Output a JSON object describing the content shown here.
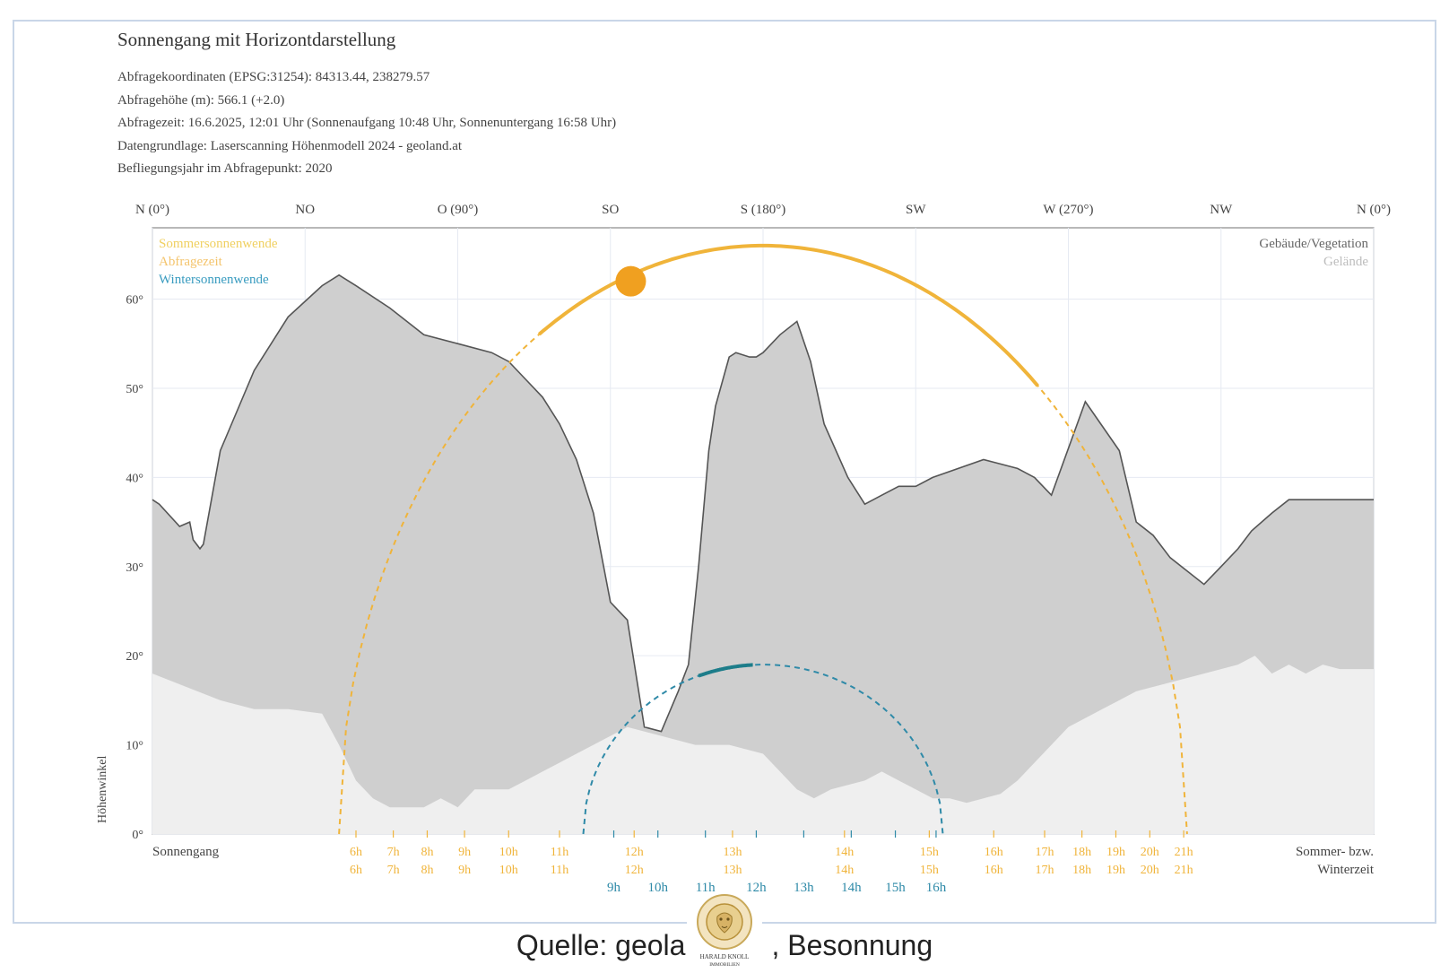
{
  "header": {
    "title": "Sonnengang mit Horizontdarstellung",
    "lines": [
      "Abfragekoordinaten (EPSG:31254): 84313.44, 238279.57",
      "Abfragehöhe (m): 566.1 (+2.0)",
      "Abfragezeit: 16.6.2025, 12:01 Uhr (Sonnenaufgang 10:48 Uhr,  Sonnenuntergang 16:58 Uhr)",
      "Datengrundlage: Laserscanning Höhenmodell 2024 - geoland.at",
      "Befliegungsjahr im Abfragepunkt: 2020"
    ]
  },
  "colors": {
    "summer": "#f0b43a",
    "query": "#f0a020",
    "winter": "#2f8aa8",
    "building_fill": "#cfcfcf",
    "terrain_fill": "#efefef",
    "outline": "#555555",
    "grid": "#e6eaf2",
    "frame": "#c9d6e8"
  },
  "chart_data": {
    "type": "area",
    "title": "",
    "xlabel": "Sonnengang",
    "ylabel": "Höhenwinkel",
    "xlim": [
      0,
      360
    ],
    "ylim": [
      0,
      68
    ],
    "grid": true,
    "legend_left": {
      "placement": "top-left",
      "items": [
        {
          "label": "Sommersonnenwende",
          "color": "#f0d060"
        },
        {
          "label": "Abfragezeit",
          "color": "#f4c46c"
        },
        {
          "label": "Wintersonnenwende",
          "color": "#3a9cc0"
        }
      ]
    },
    "legend_right": {
      "placement": "top-right",
      "items": [
        {
          "label": "Gebäude/Vegetation",
          "color": "#666666"
        },
        {
          "label": "Gelände",
          "color": "#bdbdbd"
        }
      ]
    },
    "y_ticks": [
      {
        "v": 0,
        "label": "0°"
      },
      {
        "v": 10,
        "label": "10°"
      },
      {
        "v": 20,
        "label": "20°"
      },
      {
        "v": 30,
        "label": "30°"
      },
      {
        "v": 40,
        "label": "40°"
      },
      {
        "v": 50,
        "label": "50°"
      },
      {
        "v": 60,
        "label": "60°"
      }
    ],
    "top_axis": [
      {
        "az": 0,
        "label": "N (0°)"
      },
      {
        "az": 45,
        "label": "NO"
      },
      {
        "az": 90,
        "label": "O (90°)"
      },
      {
        "az": 135,
        "label": "SO"
      },
      {
        "az": 180,
        "label": "S (180°)"
      },
      {
        "az": 225,
        "label": "SW"
      },
      {
        "az": 270,
        "label": "W (270°)"
      },
      {
        "az": 315,
        "label": "NW"
      },
      {
        "az": 360,
        "label": "N (0°)"
      }
    ],
    "bottom_corner_label": "Sommer- bzw.\nWinterzeit",
    "series": [
      {
        "name": "Gebäude/Vegetation",
        "kind": "horizon_fill",
        "x": [
          0,
          2,
          8,
          11,
          12,
          14,
          15,
          20,
          30,
          40,
          50,
          55,
          60,
          70,
          80,
          90,
          100,
          105,
          110,
          115,
          120,
          125,
          130,
          135,
          140,
          145,
          150,
          155,
          158,
          161,
          164,
          166,
          170,
          172,
          176,
          178,
          180,
          185,
          190,
          194,
          198,
          205,
          210,
          215,
          220,
          225,
          230,
          245,
          250,
          255,
          260,
          265,
          275,
          285,
          290,
          295,
          300,
          310,
          315,
          320,
          324,
          330,
          335,
          338,
          340,
          343,
          345,
          350,
          355,
          360
        ],
        "y": [
          37.5,
          37,
          34.5,
          35,
          33,
          32,
          32.5,
          43,
          52,
          58,
          61.5,
          62.7,
          61.5,
          59,
          56,
          55,
          54,
          53,
          51,
          49,
          46,
          42,
          36,
          26,
          24,
          12,
          11.5,
          16,
          19,
          30,
          43,
          48,
          53.5,
          54,
          53.5,
          53.5,
          54,
          56,
          57.5,
          53,
          46,
          40,
          37,
          38,
          39,
          39,
          40,
          42,
          41.5,
          41,
          40,
          38,
          48.5,
          43,
          35,
          33.5,
          31,
          28,
          30,
          32,
          34,
          36,
          37.5,
          37.5,
          37.5,
          37.5,
          37.5,
          37.5,
          37.5,
          37.5
        ]
      },
      {
        "name": "Gelände",
        "kind": "horizon_fill",
        "x": [
          0,
          10,
          20,
          30,
          40,
          50,
          55,
          60,
          65,
          70,
          80,
          85,
          90,
          95,
          100,
          105,
          110,
          115,
          120,
          125,
          130,
          135,
          140,
          150,
          160,
          170,
          180,
          185,
          190,
          195,
          200,
          210,
          215,
          220,
          225,
          230,
          235,
          240,
          245,
          250,
          255,
          260,
          265,
          270,
          275,
          280,
          285,
          290,
          300,
          310,
          320,
          325,
          330,
          335,
          340,
          345,
          350,
          360
        ],
        "y": [
          18,
          16.5,
          15,
          14,
          14,
          13.5,
          10,
          6,
          4,
          3,
          3,
          4,
          3,
          5,
          5,
          5,
          6,
          7,
          8,
          9,
          10,
          11,
          12,
          11,
          10,
          10,
          9,
          7,
          5,
          4,
          5,
          6,
          7,
          6,
          5,
          4,
          4,
          3.5,
          4,
          4.5,
          6,
          8,
          10,
          12,
          13,
          14,
          15,
          16,
          17,
          18,
          19,
          20,
          18,
          19,
          18,
          19,
          18.5,
          18.5
        ]
      },
      {
        "name": "Sommersonnenwende",
        "kind": "sun_path",
        "peak_az": 180,
        "peak_elev": 66,
        "rise_az": 55,
        "set_az": 305
      },
      {
        "name": "Wintersonnenwende",
        "kind": "sun_path",
        "peak_az": 180,
        "peak_elev": 19,
        "rise_az": 127,
        "set_az": 233
      }
    ],
    "visible_summer_segment": {
      "from_az": 114,
      "to_az": 261
    },
    "visible_winter_segment": {
      "from_az": 161,
      "to_az": 177
    },
    "query_sun": {
      "az": 141,
      "elev": 62
    },
    "summer_hours": [
      {
        "az": 60,
        "label": "6h",
        "label2": "6h"
      },
      {
        "az": 71,
        "label": "7h",
        "label2": "7h"
      },
      {
        "az": 81,
        "label": "8h",
        "label2": "8h"
      },
      {
        "az": 92,
        "label": "9h",
        "label2": "9h"
      },
      {
        "az": 105,
        "label": "10h",
        "label2": "10h"
      },
      {
        "az": 120,
        "label": "11h",
        "label2": "11h"
      },
      {
        "az": 142,
        "label": "12h",
        "label2": "12h"
      },
      {
        "az": 171,
        "label": "13h",
        "label2": "13h"
      },
      {
        "az": 204,
        "label": "14h",
        "label2": "14h"
      },
      {
        "az": 229,
        "label": "15h",
        "label2": "15h"
      },
      {
        "az": 248,
        "label": "16h",
        "label2": "16h"
      },
      {
        "az": 263,
        "label": "17h",
        "label2": "17h"
      },
      {
        "az": 274,
        "label": "18h",
        "label2": "18h"
      },
      {
        "az": 284,
        "label": "19h",
        "label2": "19h"
      },
      {
        "az": 294,
        "label": "20h",
        "label2": "20h"
      },
      {
        "az": 304,
        "label": "21h",
        "label2": "21h"
      }
    ],
    "winter_hours": [
      {
        "az": 136,
        "label": "9h"
      },
      {
        "az": 149,
        "label": "10h"
      },
      {
        "az": 163,
        "label": "11h"
      },
      {
        "az": 178,
        "label": "12h"
      },
      {
        "az": 192,
        "label": "13h"
      },
      {
        "az": 206,
        "label": "14h"
      },
      {
        "az": 219,
        "label": "15h"
      },
      {
        "az": 231,
        "label": "16h"
      }
    ]
  },
  "caption": {
    "left": "Quelle: geola",
    "right": ", Besonnung"
  },
  "logo": {
    "text_line1": "HARALD KNOLL",
    "text_line2": "IMMOBILIEN"
  }
}
